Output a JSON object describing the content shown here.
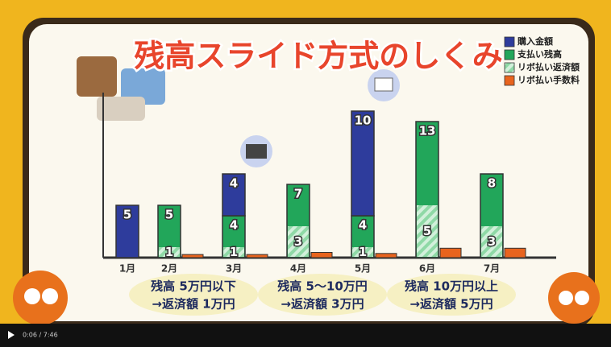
{
  "chart_data": {
    "type": "bar",
    "title": "残高スライド方式のしくみ",
    "categories": [
      "1月",
      "2月",
      "3月",
      "4月",
      "5月",
      "6月",
      "7月"
    ],
    "series": [
      {
        "name": "購入金額",
        "color": "#2e3c9c",
        "values": [
          5,
          null,
          4,
          null,
          10,
          null,
          null
        ]
      },
      {
        "name": "支払い残高",
        "color": "#22a65a",
        "values": [
          null,
          5,
          4,
          7,
          4,
          13,
          8
        ]
      },
      {
        "name": "リボ払い返済額",
        "color": "#7fd49a",
        "values": [
          null,
          1,
          1,
          3,
          1,
          5,
          3
        ]
      },
      {
        "name": "リボ払い手数料",
        "color": "#e8641e",
        "values": [
          null,
          0.3,
          0.3,
          0.5,
          0.4,
          0.9,
          0.9
        ]
      }
    ],
    "ylim": [
      0,
      15
    ],
    "annotations": [
      {
        "line1": "残高 5万円以下",
        "line2": "→返済額 1万円"
      },
      {
        "line1": "残高 5～10万円",
        "line2": "→返済額 3万円"
      },
      {
        "line1": "残高 10万円以上",
        "line2": "→返済額 5万円"
      }
    ]
  },
  "player": {
    "time": "0:06 / 7:46"
  }
}
